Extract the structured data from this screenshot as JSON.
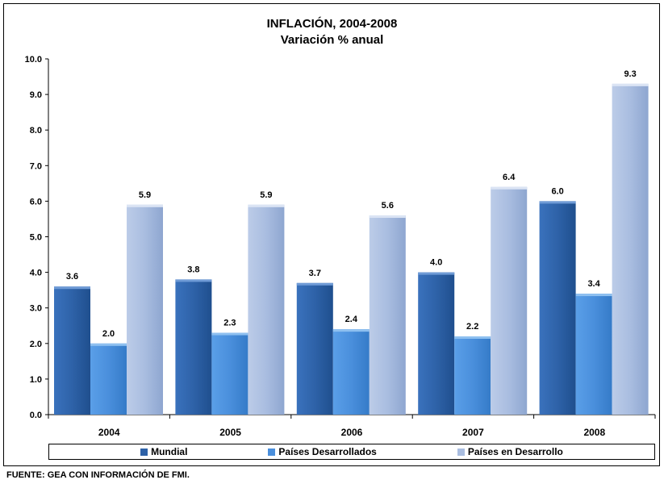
{
  "title": "INFLACIÓN, 2004-2008",
  "subtitle": "Variación % anual",
  "source": "FUENTE: GEA CON INFORMACIÓN DE FMI.",
  "colors": {
    "mundial": "#2e62a8",
    "desarrollados": "#4a8fdc",
    "desarrollo": "#a9bde0"
  },
  "chart_data": {
    "type": "bar",
    "categories": [
      "2004",
      "2005",
      "2006",
      "2007",
      "2008"
    ],
    "series": [
      {
        "name": "Mundial",
        "values": [
          3.6,
          3.8,
          3.7,
          4.0,
          6.0
        ]
      },
      {
        "name": "Países Desarrollados",
        "values": [
          2.0,
          2.3,
          2.4,
          2.2,
          3.4
        ]
      },
      {
        "name": "Países en Desarrollo",
        "values": [
          5.9,
          5.9,
          5.6,
          6.4,
          9.3
        ]
      }
    ],
    "ylim": [
      0,
      10
    ],
    "yticks": [
      "0.0",
      "1.0",
      "2.0",
      "3.0",
      "4.0",
      "5.0",
      "6.0",
      "7.0",
      "8.0",
      "9.0",
      "10.0"
    ],
    "legend_position": "bottom",
    "grid": false
  }
}
